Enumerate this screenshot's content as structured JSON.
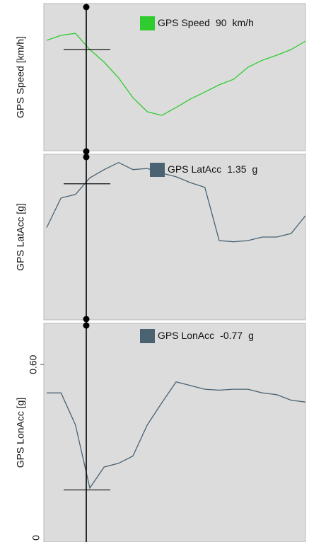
{
  "chart_data": [
    {
      "type": "line",
      "ylabel": "GPS Speed [km/h]",
      "ylim": [
        35,
        115
      ],
      "series": [
        {
          "name": "GPS Speed",
          "color": "#2ecc2e",
          "values": [
            95.0,
            97.7,
            98.8,
            90.0,
            83.1,
            74.6,
            63.8,
            56.2,
            54.2,
            58.5,
            63.1,
            66.9,
            70.8,
            73.8,
            80.4,
            84.2,
            86.9,
            90.0,
            94.6
          ]
        }
      ],
      "cursor": {
        "value": 90,
        "unit": "km/h"
      }
    },
    {
      "type": "line",
      "ylabel": "GPS LatAcc [g]",
      "ylim": [
        0.2,
        1.6
      ],
      "series": [
        {
          "name": "GPS LatAcc",
          "color": "#4a6272",
          "values": [
            0.98,
            1.23,
            1.26,
            1.4,
            1.47,
            1.53,
            1.47,
            1.48,
            1.44,
            1.41,
            1.36,
            1.32,
            0.87,
            0.86,
            0.87,
            0.9,
            0.9,
            0.93,
            1.08
          ]
        }
      ],
      "cursor": {
        "value": 1.35,
        "unit": "g"
      }
    },
    {
      "type": "line",
      "ylabel": "GPS LonAcc [g]",
      "ylim": [
        -1.34,
        1.05
      ],
      "yticks": [
        {
          "value": 0.6,
          "label": "0.60"
        }
      ],
      "cut_label": "0",
      "series": [
        {
          "name": "GPS LonAcc",
          "color": "#4a6272",
          "values": [
            0.29,
            0.29,
            -0.06,
            -0.75,
            -0.52,
            -0.48,
            -0.4,
            -0.06,
            0.18,
            0.41,
            0.37,
            0.33,
            0.32,
            0.33,
            0.33,
            0.29,
            0.27,
            0.21,
            0.19
          ]
        }
      ],
      "cursor": {
        "value": -0.77,
        "unit": "g"
      }
    }
  ]
}
